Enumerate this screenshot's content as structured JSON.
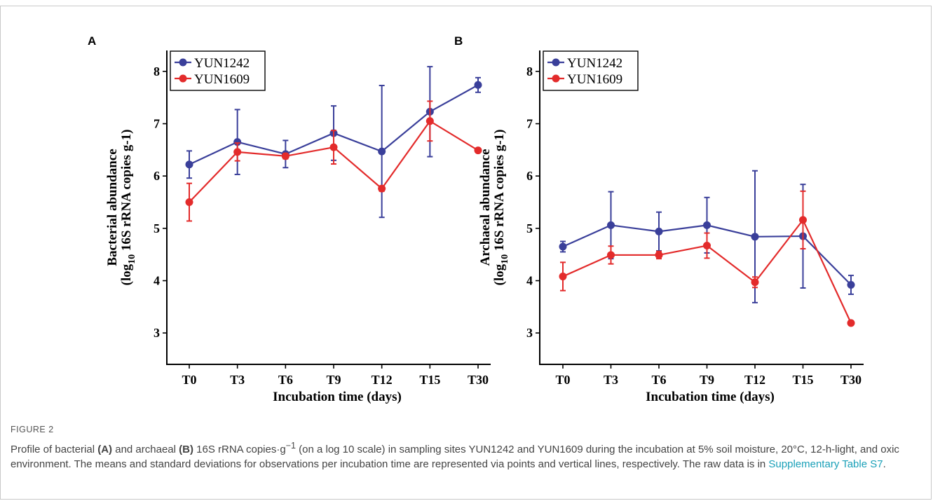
{
  "chart_data": [
    {
      "panel_label": "A",
      "type": "line",
      "categories": [
        "T0",
        "T3",
        "T6",
        "T9",
        "T12",
        "T15",
        "T30"
      ],
      "xlabel": "Incubation time (days)",
      "ylabel_line1": "Bacterial abundance",
      "ylabel_line2_pre": "(log",
      "ylabel_line2_sub": "10",
      "ylabel_line2_post": " 16S rRNA copies g-1)",
      "ylim": [
        2.4,
        8.4
      ],
      "yticks": [
        3,
        4,
        5,
        6,
        7,
        8
      ],
      "legend_position": "top-left",
      "series": [
        {
          "name": "YUN1242",
          "color": "#3a3f9a",
          "values": [
            6.22,
            6.65,
            6.42,
            6.82,
            6.47,
            7.23,
            7.74
          ],
          "errors": [
            0.26,
            0.62,
            0.26,
            0.52,
            1.26,
            0.86,
            0.14
          ]
        },
        {
          "name": "YUN1609",
          "color": "#e32b2b",
          "values": [
            5.5,
            6.46,
            6.38,
            6.55,
            5.76,
            7.05,
            6.49
          ],
          "errors": [
            0.36,
            0.17,
            0.05,
            0.32,
            0.05,
            0.38,
            0.03
          ]
        }
      ]
    },
    {
      "panel_label": "B",
      "type": "line",
      "categories": [
        "T0",
        "T3",
        "T6",
        "T9",
        "T12",
        "T15",
        "T30"
      ],
      "xlabel": "Incubation time (days)",
      "ylabel_line1": "Archaeal abundance",
      "ylabel_line2_pre": "(log",
      "ylabel_line2_sub": "10",
      "ylabel_line2_post": " 16S rRNA copies g-1)",
      "ylim": [
        2.4,
        8.4
      ],
      "yticks": [
        3,
        4,
        5,
        6,
        7,
        8
      ],
      "legend_position": "top-left",
      "series": [
        {
          "name": "YUN1242",
          "color": "#3a3f9a",
          "values": [
            4.65,
            5.06,
            4.94,
            5.06,
            4.84,
            4.85,
            3.92
          ],
          "errors": [
            0.1,
            0.64,
            0.37,
            0.53,
            1.26,
            0.99,
            0.18
          ]
        },
        {
          "name": "YUN1609",
          "color": "#e32b2b",
          "values": [
            4.08,
            4.49,
            4.49,
            4.67,
            3.97,
            5.16,
            3.19
          ],
          "errors": [
            0.27,
            0.17,
            0.07,
            0.24,
            0.1,
            0.55,
            0.04
          ]
        }
      ]
    }
  ],
  "caption": {
    "figure_label": "FIGURE 2",
    "text_1": "Profile of bacterial ",
    "bold_a": "(A)",
    "text_2": " and archaeal ",
    "bold_b": "(B)",
    "text_3": " 16S rRNA copies·g",
    "sup": "−1",
    "text_4": " (on a log 10 scale) in sampling sites YUN1242 and YUN1609 during the incubation at 5% soil moisture, 20°C, 12-h-light, and oxic environment. The means and standard deviations for observations per incubation time are represented via points and vertical lines, respectively. The raw data is in ",
    "link_text": "Supplementary Table S7",
    "text_5": "."
  }
}
